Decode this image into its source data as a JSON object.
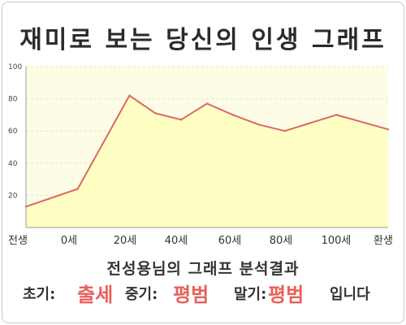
{
  "title": "재미로 보는 당신의 인생 그래프",
  "subtitle": "전성용님의 그래프 분석결과",
  "result": {
    "early_label": "초기:",
    "early_value": "출세",
    "middle_label": "중기:",
    "middle_value": "평범",
    "late_label": "말기:",
    "late_value": "평범",
    "ending": "입니다"
  },
  "colors": {
    "plot_background": "#fdfde6",
    "area_fill": "#ffffc4",
    "line": "#dd6666",
    "grid": "#e2e2c8",
    "highlight": "#e8605a"
  },
  "chart_data": {
    "type": "area",
    "title": "재미로 보는 당신의 인생 그래프",
    "xlabel": "",
    "ylabel": "",
    "x_ticks": [
      "전생",
      "0세",
      "20세",
      "40세",
      "60세",
      "80세",
      "100세",
      "환생"
    ],
    "x": [
      -20,
      0,
      20,
      30,
      40,
      50,
      60,
      70,
      80,
      90,
      100,
      120
    ],
    "values": [
      13,
      24,
      82,
      71,
      67,
      77,
      70,
      64,
      60,
      65,
      70,
      61
    ],
    "ylim": [
      0,
      100
    ],
    "y_ticks": [
      20,
      40,
      60,
      80,
      100
    ],
    "grid": true,
    "legend": "none"
  }
}
